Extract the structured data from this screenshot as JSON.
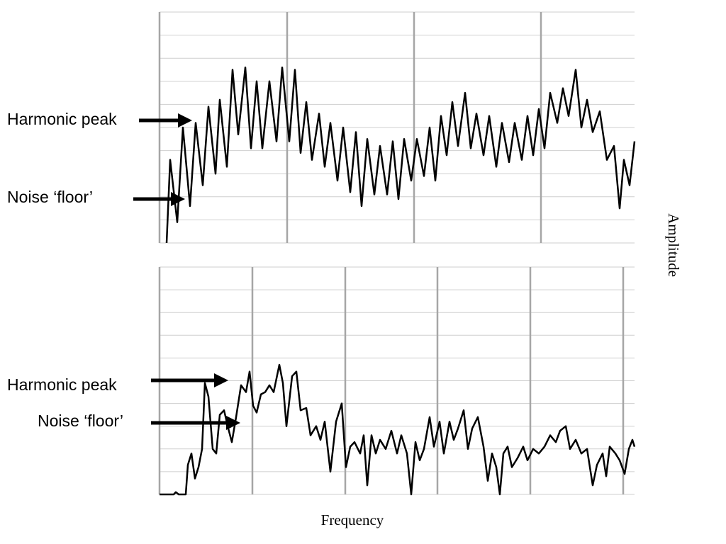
{
  "chart_data": [
    {
      "type": "line",
      "ylabel": "Amplitude",
      "xlim": [
        0,
        670
      ],
      "xticks": [
        0,
        180,
        359,
        538
      ],
      "ylim": [
        0,
        10
      ],
      "yticks": [
        0,
        1,
        2,
        3,
        4,
        5,
        6,
        7,
        8,
        9,
        10
      ],
      "grid": true,
      "annotations": [
        "Harmonic peak",
        "Noise ‘floor’"
      ],
      "series": [
        {
          "color": "#000000",
          "x": [
            10,
            15,
            25,
            33,
            43,
            51,
            61,
            69,
            79,
            85,
            95,
            103,
            111,
            121,
            129,
            137,
            145,
            155,
            165,
            173,
            183,
            191,
            199,
            207,
            215,
            225,
            233,
            241,
            251,
            259,
            269,
            277,
            285,
            293,
            303,
            311,
            321,
            329,
            337,
            345,
            355,
            363,
            373,
            381,
            389,
            397,
            405,
            413,
            421,
            431,
            439,
            447,
            457,
            465,
            475,
            483,
            493,
            501,
            511,
            519,
            527,
            535,
            543,
            551,
            561,
            569,
            577,
            587,
            595,
            603,
            611,
            621,
            631,
            641,
            649,
            655,
            663,
            670
          ],
          "values": [
            0,
            3.6,
            0.9,
            5.0,
            1.6,
            5.2,
            2.5,
            5.9,
            3.0,
            6.2,
            3.3,
            7.5,
            4.7,
            7.6,
            4.1,
            7.0,
            4.1,
            7.0,
            4.4,
            7.6,
            4.4,
            7.5,
            3.9,
            6.1,
            3.6,
            5.6,
            3.3,
            5.2,
            2.7,
            5.0,
            2.2,
            4.8,
            1.6,
            4.5,
            2.1,
            4.2,
            2.1,
            4.4,
            1.9,
            4.5,
            2.7,
            4.5,
            2.9,
            5.0,
            2.7,
            5.5,
            3.8,
            6.1,
            4.2,
            6.5,
            4.1,
            5.6,
            3.8,
            5.5,
            3.3,
            5.2,
            3.5,
            5.2,
            3.6,
            5.5,
            3.8,
            5.8,
            4.1,
            6.5,
            5.2,
            6.7,
            5.5,
            7.5,
            5.0,
            6.2,
            4.8,
            5.7,
            3.6,
            4.2,
            1.5,
            3.6,
            2.5,
            4.4
          ]
        }
      ]
    },
    {
      "type": "line",
      "xlabel": "Frequency",
      "xlim": [
        0,
        670
      ],
      "xticks": [
        0,
        131,
        262,
        392,
        523,
        654
      ],
      "ylim": [
        0,
        10
      ],
      "yticks": [
        0,
        1,
        2,
        3,
        4,
        5,
        6,
        7,
        8,
        9,
        10
      ],
      "grid": true,
      "annotations": [
        "Harmonic peak",
        "Noise ‘floor’"
      ],
      "series": [
        {
          "color": "#000000",
          "x": [
            0,
            20,
            23,
            27,
            37,
            40,
            45,
            50,
            55,
            60,
            64,
            69,
            75,
            80,
            85,
            91,
            97,
            102,
            108,
            115,
            122,
            127,
            132,
            137,
            143,
            149,
            155,
            161,
            169,
            174,
            179,
            187,
            193,
            199,
            207,
            213,
            221,
            227,
            233,
            241,
            249,
            257,
            263,
            269,
            275,
            283,
            288,
            293,
            299,
            305,
            311,
            319,
            327,
            335,
            341,
            349,
            355,
            361,
            367,
            373,
            381,
            387,
            395,
            401,
            409,
            415,
            421,
            429,
            435,
            441,
            449,
            457,
            463,
            469,
            475,
            480,
            485,
            491,
            497,
            505,
            513,
            519,
            527,
            535,
            543,
            551,
            559,
            565,
            573,
            579,
            587,
            595,
            603,
            611,
            617,
            625,
            630,
            635,
            643,
            649,
            656,
            662,
            667,
            670
          ],
          "values": [
            0,
            0,
            0.1,
            0,
            0,
            1.3,
            1.8,
            0.7,
            1.2,
            2.0,
            4.9,
            4.3,
            2.0,
            1.8,
            3.5,
            3.7,
            2.9,
            2.3,
            3.4,
            4.8,
            4.5,
            5.4,
            3.9,
            3.6,
            4.4,
            4.5,
            4.8,
            4.5,
            5.7,
            4.9,
            3.0,
            5.2,
            5.4,
            3.7,
            3.8,
            2.6,
            3.0,
            2.4,
            3.2,
            1.0,
            3.2,
            4.0,
            1.2,
            2.1,
            2.3,
            1.8,
            2.6,
            0.4,
            2.6,
            1.8,
            2.4,
            2.0,
            2.8,
            1.8,
            2.6,
            1.8,
            0.0,
            2.3,
            1.5,
            2.0,
            3.4,
            2.1,
            3.2,
            1.8,
            3.2,
            2.4,
            2.9,
            3.7,
            2.0,
            2.9,
            3.4,
            2.1,
            0.6,
            1.8,
            1.2,
            0.0,
            1.8,
            2.1,
            1.2,
            1.6,
            2.1,
            1.5,
            2.0,
            1.8,
            2.1,
            2.6,
            2.3,
            2.8,
            3.0,
            2.0,
            2.4,
            1.8,
            2.0,
            0.4,
            1.3,
            1.8,
            0.8,
            2.1,
            1.8,
            1.5,
            0.9,
            2.0,
            2.4,
            2.1
          ]
        }
      ]
    }
  ]
}
